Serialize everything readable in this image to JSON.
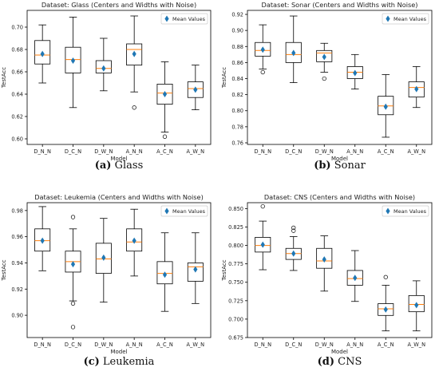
{
  "colors": {
    "median": "#ff7f0e",
    "mean_marker": "#1f77b4",
    "box_edge": "#000000"
  },
  "chart_data": [
    {
      "type": "box",
      "title": "Dataset: Glass (Centers and Widths with Noise)",
      "xlabel": "Model",
      "ylabel": "TestAcc",
      "ylim": [
        0.595,
        0.715
      ],
      "yticks": [
        0.6,
        0.62,
        0.64,
        0.66,
        0.68,
        0.7
      ],
      "ytick_labels": [
        "0.60",
        "0.62",
        "0.64",
        "0.66",
        "0.68",
        "0.70"
      ],
      "legend": "Mean Values",
      "legend_position": "top-right",
      "caption_letter": "(a)",
      "caption_text": "Glass",
      "categories": [
        "D_N_N",
        "D_C_N",
        "D_W_N",
        "A_N_N",
        "A_C_N",
        "A_W_N"
      ],
      "boxes": [
        {
          "wlo": 0.65,
          "q1": 0.667,
          "med": 0.675,
          "q3": 0.688,
          "whi": 0.702,
          "mean": 0.676,
          "outliers": []
        },
        {
          "wlo": 0.628,
          "q1": 0.659,
          "med": 0.671,
          "q3": 0.682,
          "whi": 0.709,
          "mean": 0.67,
          "outliers": []
        },
        {
          "wlo": 0.643,
          "q1": 0.659,
          "med": 0.663,
          "q3": 0.67,
          "whi": 0.69,
          "mean": 0.663,
          "outliers": []
        },
        {
          "wlo": 0.642,
          "q1": 0.666,
          "med": 0.68,
          "q3": 0.685,
          "whi": 0.71,
          "mean": 0.676,
          "outliers": [
            0.628
          ]
        },
        {
          "wlo": 0.606,
          "q1": 0.631,
          "med": 0.641,
          "q3": 0.649,
          "whi": 0.669,
          "mean": 0.64,
          "outliers": [
            0.602
          ]
        },
        {
          "wlo": 0.626,
          "q1": 0.637,
          "med": 0.645,
          "q3": 0.651,
          "whi": 0.666,
          "mean": 0.644,
          "outliers": []
        }
      ]
    },
    {
      "type": "box",
      "title": "Dataset: Sonar (Centers and Widths with Noise)",
      "xlabel": "Model",
      "ylabel": "TestAcc",
      "ylim": [
        0.758,
        0.925
      ],
      "yticks": [
        0.76,
        0.78,
        0.8,
        0.82,
        0.84,
        0.86,
        0.88,
        0.9,
        0.92
      ],
      "ytick_labels": [
        "0.76",
        "0.78",
        "0.80",
        "0.82",
        "0.84",
        "0.86",
        "0.88",
        "0.90",
        "0.92"
      ],
      "legend": "Mean Values",
      "legend_position": "top-right",
      "caption_letter": "(b)",
      "caption_text": "Sonar",
      "categories": [
        "D_N_N",
        "D_C_N",
        "D_W_N",
        "A_N_N",
        "A_C_N",
        "A_W_N"
      ],
      "boxes": [
        {
          "wlo": 0.852,
          "q1": 0.868,
          "med": 0.875,
          "q3": 0.885,
          "whi": 0.907,
          "mean": 0.876,
          "outliers": [
            0.848
          ]
        },
        {
          "wlo": 0.835,
          "q1": 0.86,
          "med": 0.87,
          "q3": 0.885,
          "whi": 0.918,
          "mean": 0.872,
          "outliers": []
        },
        {
          "wlo": 0.848,
          "q1": 0.861,
          "med": 0.872,
          "q3": 0.875,
          "whi": 0.884,
          "mean": 0.867,
          "outliers": [
            0.84
          ]
        },
        {
          "wlo": 0.827,
          "q1": 0.84,
          "med": 0.848,
          "q3": 0.855,
          "whi": 0.87,
          "mean": 0.847,
          "outliers": []
        },
        {
          "wlo": 0.767,
          "q1": 0.795,
          "med": 0.806,
          "q3": 0.818,
          "whi": 0.845,
          "mean": 0.805,
          "outliers": []
        },
        {
          "wlo": 0.804,
          "q1": 0.817,
          "med": 0.829,
          "q3": 0.836,
          "whi": 0.855,
          "mean": 0.827,
          "outliers": []
        }
      ]
    },
    {
      "type": "box",
      "title": "Dataset: Leukemia (Centers and Widths with Noise)",
      "xlabel": "Model",
      "ylabel": "TestAcc",
      "ylim": [
        0.883,
        0.986
      ],
      "yticks": [
        0.9,
        0.92,
        0.94,
        0.96,
        0.98
      ],
      "ytick_labels": [
        "0.90",
        "0.92",
        "0.94",
        "0.96",
        "0.98"
      ],
      "legend": "Mean Values",
      "legend_position": "top-right",
      "caption_letter": "(c)",
      "caption_text": "Leukemia",
      "categories": [
        "D_N_N",
        "D_C_N",
        "D_W_N",
        "A_N_N",
        "A_C_N",
        "A_W_N"
      ],
      "boxes": [
        {
          "wlo": 0.934,
          "q1": 0.949,
          "med": 0.957,
          "q3": 0.966,
          "whi": 0.983,
          "mean": 0.957,
          "outliers": []
        },
        {
          "wlo": 0.911,
          "q1": 0.933,
          "med": 0.941,
          "q3": 0.949,
          "whi": 0.966,
          "mean": 0.939,
          "outliers": [
            0.975,
            0.909,
            0.891
          ]
        },
        {
          "wlo": 0.91,
          "q1": 0.932,
          "med": 0.943,
          "q3": 0.955,
          "whi": 0.974,
          "mean": 0.944,
          "outliers": []
        },
        {
          "wlo": 0.93,
          "q1": 0.949,
          "med": 0.956,
          "q3": 0.966,
          "whi": 0.981,
          "mean": 0.957,
          "outliers": []
        },
        {
          "wlo": 0.903,
          "q1": 0.924,
          "med": 0.932,
          "q3": 0.941,
          "whi": 0.963,
          "mean": 0.931,
          "outliers": []
        },
        {
          "wlo": 0.909,
          "q1": 0.926,
          "med": 0.937,
          "q3": 0.94,
          "whi": 0.963,
          "mean": 0.935,
          "outliers": []
        }
      ]
    },
    {
      "type": "box",
      "title": "Dataset: CNS (Centers and Widths with Noise)",
      "xlabel": "Model",
      "ylabel": "TestAcc",
      "ylim": [
        0.675,
        0.858
      ],
      "yticks": [
        0.675,
        0.7,
        0.725,
        0.75,
        0.775,
        0.8,
        0.825,
        0.85
      ],
      "ytick_labels": [
        "0.675",
        "0.700",
        "0.725",
        "0.750",
        "0.775",
        "0.800",
        "0.825",
        "0.850"
      ],
      "legend": "Mean Values",
      "legend_position": "top-right",
      "caption_letter": "(d)",
      "caption_text": "CNS",
      "categories": [
        "D_N_N",
        "D_C_N",
        "D_W_N",
        "A_N_N",
        "A_C_N",
        "A_W_N"
      ],
      "boxes": [
        {
          "wlo": 0.767,
          "q1": 0.791,
          "med": 0.8,
          "q3": 0.811,
          "whi": 0.833,
          "mean": 0.801,
          "outliers": [
            0.853
          ]
        },
        {
          "wlo": 0.766,
          "q1": 0.781,
          "med": 0.789,
          "q3": 0.796,
          "whi": 0.812,
          "mean": 0.789,
          "outliers": [
            0.82,
            0.824
          ]
        },
        {
          "wlo": 0.738,
          "q1": 0.769,
          "med": 0.779,
          "q3": 0.796,
          "whi": 0.813,
          "mean": 0.781,
          "outliers": []
        },
        {
          "wlo": 0.724,
          "q1": 0.746,
          "med": 0.755,
          "q3": 0.766,
          "whi": 0.793,
          "mean": 0.756,
          "outliers": []
        },
        {
          "wlo": 0.684,
          "q1": 0.705,
          "med": 0.714,
          "q3": 0.721,
          "whi": 0.746,
          "mean": 0.713,
          "outliers": [
            0.757
          ]
        },
        {
          "wlo": 0.684,
          "q1": 0.71,
          "med": 0.72,
          "q3": 0.732,
          "whi": 0.752,
          "mean": 0.719,
          "outliers": []
        }
      ]
    }
  ]
}
